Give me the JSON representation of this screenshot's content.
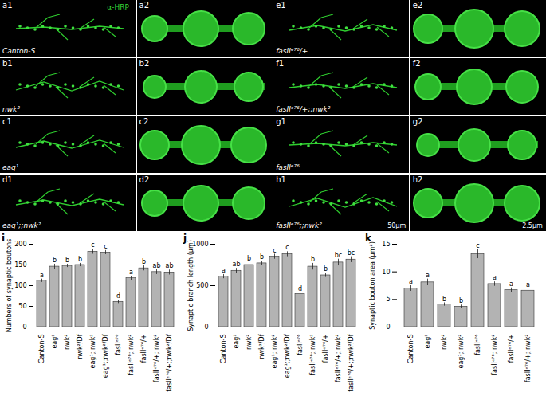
{
  "panels": [
    {
      "id": "a1",
      "label": "Canton-S",
      "stain": "α-HRP"
    },
    {
      "id": "a2"
    },
    {
      "id": "e1",
      "label": "fasIIᵉ⁷⁶/+"
    },
    {
      "id": "e2"
    },
    {
      "id": "b1",
      "label": "nwk²"
    },
    {
      "id": "b2"
    },
    {
      "id": "f1",
      "label": "fasIIᵉ⁷⁶/+;;nwk²"
    },
    {
      "id": "f2"
    },
    {
      "id": "c1",
      "label": "eag¹"
    },
    {
      "id": "c2"
    },
    {
      "id": "g1",
      "label": "fasIIᵉ⁷⁶"
    },
    {
      "id": "g2"
    },
    {
      "id": "d1",
      "label": "eag¹;;nwk²"
    },
    {
      "id": "d2"
    },
    {
      "id": "h1",
      "label": "fasIIᵉ⁷⁶;;nwk²",
      "scale_bar": "50μm"
    },
    {
      "id": "h2",
      "scale_bar": "2.5μm"
    }
  ],
  "chart_data": [
    {
      "type": "bar",
      "panel": "i",
      "y_label": "Numbers of synaptic boutons",
      "color": "#b3b3b3",
      "categories": [
        "Canton-S",
        "eag¹",
        "nwk²",
        "nwk²/Df",
        "eag¹;;nwk²",
        "eag¹;;nwk²/Df",
        "fasIIᵉ⁷⁶",
        "fasIIᵉ⁷⁶;;nwk²",
        "fasIIᵉ⁷⁶/+",
        "fasIIᵉ⁷⁶/+;;nwk²",
        "fasIIᵉ⁷⁶/+;;nwk²/Df"
      ],
      "values": [
        112,
        146,
        148,
        150,
        182,
        180,
        61,
        118,
        142,
        133,
        132
      ],
      "errors": [
        4,
        6,
        4,
        4,
        6,
        5,
        4,
        5,
        6,
        6,
        6
      ],
      "annotations": [
        "a",
        "b",
        "b",
        "b",
        "c",
        "c",
        "d",
        "a",
        "b",
        "ab",
        "ab"
      ],
      "ylim": [
        0,
        200
      ],
      "yticks": [
        0,
        50,
        100,
        150,
        200
      ]
    },
    {
      "type": "bar",
      "panel": "j",
      "y_label": "Synaptic branch length (μm)",
      "color": "#b3b3b3",
      "categories": [
        "Canton-S",
        "eag¹",
        "nwk²",
        "nwk²/Df",
        "eag¹;;nwk²",
        "eag¹;;nwk²/Df",
        "fasIIᵉ⁷⁶",
        "fasIIᵉ⁷⁶;;nwk²",
        "fasIIᵉ⁷⁶/+",
        "fasIIᵉ⁷⁶/+;;nwk²",
        "fasIIᵉ⁷⁶/+;;nwk²/Df"
      ],
      "values": [
        610,
        680,
        750,
        770,
        850,
        880,
        400,
        730,
        625,
        780,
        815
      ],
      "errors": [
        25,
        30,
        25,
        25,
        30,
        30,
        15,
        40,
        25,
        40,
        35
      ],
      "annotations": [
        "a",
        "ab",
        "b",
        "b",
        "c",
        "c",
        "d",
        "b",
        "b",
        "bc",
        "bc"
      ],
      "ylim": [
        0,
        1000
      ],
      "yticks": [
        0,
        500,
        1000
      ]
    },
    {
      "type": "bar",
      "panel": "k",
      "y_label": "Synaptic bouton area (μm²)",
      "color": "#b3b3b3",
      "categories": [
        "Canton-S",
        "eag¹",
        "nwk²",
        "eag¹;;nwk²",
        "fasIIᵉ⁷⁶",
        "fasIIᵉ⁷⁶;;nwk²",
        "fasIIᵉ⁷⁶/+",
        "fasIIᵉ⁷⁶/+;;nwk²"
      ],
      "values": [
        7.0,
        8.1,
        4.1,
        3.7,
        13.2,
        7.8,
        6.7,
        6.6
      ],
      "errors": [
        0.5,
        0.6,
        0.3,
        0.3,
        0.8,
        0.4,
        0.4,
        0.3
      ],
      "annotations": [
        "a",
        "a",
        "b",
        "b",
        "c",
        "a",
        "a",
        "a"
      ],
      "ylim": [
        0,
        15
      ],
      "yticks": [
        0,
        5,
        10,
        15
      ]
    }
  ]
}
